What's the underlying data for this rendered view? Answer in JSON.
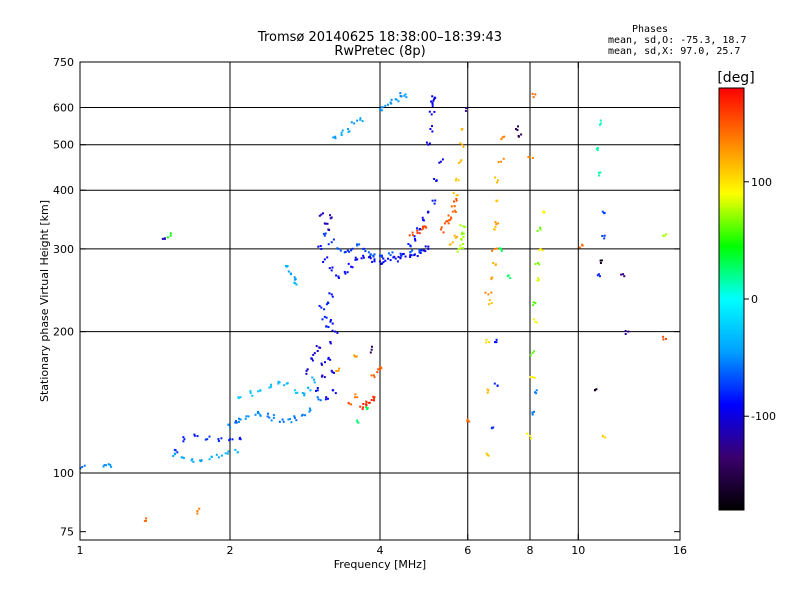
{
  "chart_data": {
    "type": "scatter",
    "title": "Tromsø 20140625 18:38:00–18:39:43",
    "subtitle": "RwPretec (8p)",
    "stats": {
      "heading": "Phases",
      "line1": "mean, sd,O:  -75.3, 18.7",
      "line2": "mean, sd,X:   97.0, 25.7"
    },
    "xlabel": "Frequency [MHz]",
    "ylabel": "Stationary phase Virtual Height [km]",
    "x_scale": "log",
    "y_scale": "log",
    "xlim": [
      1,
      16
    ],
    "ylim": [
      72,
      750
    ],
    "x_ticks": [
      {
        "value": 1,
        "label": "1"
      },
      {
        "value": 2,
        "label": "2"
      },
      {
        "value": 4,
        "label": "4"
      },
      {
        "value": 6,
        "label": "6"
      },
      {
        "value": 8,
        "label": "8"
      },
      {
        "value": 10,
        "label": "10"
      },
      {
        "value": 16,
        "label": "16"
      }
    ],
    "y_ticks": [
      {
        "value": 75,
        "label": "75"
      },
      {
        "value": 100,
        "label": "100"
      },
      {
        "value": 200,
        "label": "200"
      },
      {
        "value": 300,
        "label": "300"
      },
      {
        "value": 400,
        "label": "400"
      },
      {
        "value": 500,
        "label": "500"
      },
      {
        "value": 600,
        "label": "600"
      },
      {
        "value": 750,
        "label": "750"
      }
    ],
    "x_grid": [
      2,
      4,
      6,
      8,
      10
    ],
    "y_grid": [
      100,
      200,
      300,
      400,
      500,
      600
    ],
    "grid": true,
    "colorbar": {
      "label": "[deg]",
      "range": [
        -180,
        180
      ],
      "ticks": [
        {
          "value": 100,
          "label": "100"
        },
        {
          "value": 0,
          "label": "0"
        },
        {
          "value": -100,
          "label": "-100"
        }
      ],
      "stops": [
        "#000000",
        "#3a006e",
        "#0000ff",
        "#00a0ff",
        "#00ffff",
        "#00ff00",
        "#ffff00",
        "#ff8000",
        "#ff0000"
      ]
    },
    "series": [
      {
        "x": [
          1.01,
          1.12,
          1.15
        ],
        "y": [
          103,
          104,
          104
        ],
        "phase": -50
      },
      {
        "x": [
          1.35
        ],
        "y": [
          79
        ],
        "phase": 140
      },
      {
        "x": [
          1.72
        ],
        "y": [
          83
        ],
        "phase": 130
      },
      {
        "x": [
          1.55,
          1.62,
          1.7,
          1.8,
          1.9,
          2.0,
          2.1
        ],
        "y": [
          112,
          118,
          120,
          118,
          117,
          118,
          118
        ],
        "phase": -80
      },
      {
        "x": [
          1.55,
          1.6,
          1.68,
          1.75,
          1.82,
          1.9,
          1.98,
          2.05
        ],
        "y": [
          110,
          108,
          107,
          106,
          107,
          108,
          110,
          112
        ],
        "phase": -40
      },
      {
        "x": [
          2.0,
          2.05,
          2.1,
          2.18,
          2.25,
          2.3,
          2.38,
          2.45,
          2.55,
          2.62,
          2.7,
          2.8,
          2.9,
          3.0
        ],
        "y": [
          125,
          128,
          130,
          132,
          133,
          133,
          132,
          131,
          130,
          130,
          131,
          133,
          136,
          145
        ],
        "phase": -55
      },
      {
        "x": [
          2.1,
          2.2,
          2.3,
          2.4,
          2.5,
          2.6,
          2.7,
          2.8,
          2.9,
          2.95
        ],
        "y": [
          145,
          148,
          150,
          152,
          155,
          155,
          150,
          148,
          150,
          158
        ],
        "phase": -30
      },
      {
        "x": [
          2.85,
          2.92,
          2.96,
          3.0,
          3.02,
          3.06,
          3.1,
          3.12,
          3.15,
          3.18,
          3.2,
          3.22,
          3.25
        ],
        "y": [
          165,
          175,
          180,
          150,
          185,
          170,
          160,
          145,
          175,
          190,
          165,
          150,
          200
        ],
        "phase": -100
      },
      {
        "x": [
          3.05,
          3.1,
          3.12,
          3.15,
          3.18,
          3.2
        ],
        "y": [
          225,
          215,
          205,
          230,
          210,
          240
        ],
        "phase": -85
      },
      {
        "x": [
          3.05,
          3.1,
          3.2,
          3.3,
          3.4,
          3.5,
          3.6,
          3.7,
          3.8,
          3.9,
          4.0,
          4.1,
          4.2,
          4.3,
          4.4,
          4.5,
          4.6,
          4.7,
          4.8,
          4.9,
          5.0
        ],
        "y": [
          300,
          285,
          270,
          262,
          268,
          275,
          285,
          290,
          288,
          285,
          282,
          283,
          284,
          286,
          287,
          289,
          291,
          292,
          295,
          298,
          300
        ],
        "phase": -95
      },
      {
        "x": [
          3.1,
          3.2,
          3.3,
          3.4,
          3.5,
          3.6,
          3.7,
          3.8,
          3.9,
          4.0,
          4.2,
          4.4,
          4.6,
          4.8
        ],
        "y": [
          320,
          310,
          300,
          295,
          298,
          305,
          300,
          295,
          292,
          290,
          291,
          293,
          295,
          298
        ],
        "phase": -70
      },
      {
        "x": [
          3.05,
          3.1,
          3.15,
          3.2
        ],
        "y": [
          355,
          340,
          330,
          350
        ],
        "phase": -110
      },
      {
        "x": [
          2.6,
          2.65,
          2.7,
          2.72
        ],
        "y": [
          275,
          265,
          258,
          252
        ],
        "phase": -40
      },
      {
        "x": [
          3.25,
          3.35,
          3.45,
          3.55,
          3.65
        ],
        "y": [
          520,
          530,
          540,
          555,
          565
        ],
        "phase": -45
      },
      {
        "x": [
          4.0,
          4.1,
          4.2,
          4.3,
          4.4,
          4.5
        ],
        "y": [
          595,
          605,
          615,
          625,
          635,
          640
        ],
        "phase": -50
      },
      {
        "x": [
          4.6,
          4.7,
          4.8,
          4.9,
          5.0,
          5.1,
          5.2,
          5.3
        ],
        "y": [
          305,
          315,
          330,
          345,
          360,
          380,
          420,
          460
        ],
        "phase": -90
      },
      {
        "x": [
          5.0,
          5.05,
          5.08,
          5.1,
          5.12,
          5.15
        ],
        "y": [
          500,
          540,
          580,
          610,
          620,
          630
        ],
        "phase": -100
      },
      {
        "x": [
          5.3,
          5.4,
          5.5,
          5.55,
          5.6,
          5.65,
          5.7
        ],
        "y": [
          330,
          340,
          345,
          350,
          360,
          370,
          380
        ],
        "phase": 150
      },
      {
        "x": [
          5.6,
          5.65,
          5.7,
          5.75,
          5.8,
          5.85,
          5.85
        ],
        "y": [
          310,
          320,
          390,
          420,
          460,
          500,
          540
        ],
        "phase": 115
      },
      {
        "x": [
          5.75,
          5.8,
          5.82,
          5.85,
          5.88
        ],
        "y": [
          300,
          305,
          315,
          325,
          335
        ],
        "phase": 70
      },
      {
        "x": [
          4.65,
          4.75,
          4.85,
          4.95
        ],
        "y": [
          325,
          328,
          330,
          333
        ],
        "phase": 160
      },
      {
        "x": [
          3.7,
          3.75,
          3.8,
          3.85,
          3.9
        ],
        "y": [
          138,
          140,
          141,
          143,
          145
        ],
        "phase": 165
      },
      {
        "x": [
          3.9,
          3.95,
          4.0
        ],
        "y": [
          160,
          164,
          168
        ],
        "phase": 150
      },
      {
        "x": [
          3.5,
          3.6
        ],
        "y": [
          140,
          145
        ],
        "phase": 140
      },
      {
        "x": [
          3.3,
          3.55
        ],
        "y": [
          165,
          178
        ],
        "phase": 120
      },
      {
        "x": [
          3.62,
          3.75
        ],
        "y": [
          128,
          138
        ],
        "phase": 30
      },
      {
        "x": [
          3.85
        ],
        "y": [
          183
        ],
        "phase": -150
      },
      {
        "x": [
          6.0
        ],
        "y": [
          130
        ],
        "phase": 140
      },
      {
        "x": [
          5.95
        ],
        "y": [
          590
        ],
        "phase": -120
      },
      {
        "x": [
          1.48
        ],
        "y": [
          315
        ],
        "phase": -110
      },
      {
        "x": [
          1.52
        ],
        "y": [
          320
        ],
        "phase": 50
      },
      {
        "x": [
          6.55,
          6.6,
          6.62,
          6.7,
          6.75,
          6.8,
          6.85,
          6.9
        ],
        "y": [
          110,
          150,
          190,
          230,
          280,
          330,
          380,
          420
        ],
        "phase": 110
      },
      {
        "x": [
          6.6,
          6.7,
          6.8,
          6.9,
          7.0,
          7.1
        ],
        "y": [
          240,
          260,
          300,
          340,
          460,
          520
        ],
        "phase": 130
      },
      {
        "x": [
          6.75,
          6.8,
          6.85
        ],
        "y": [
          125,
          155,
          190
        ],
        "phase": -80
      },
      {
        "x": [
          7.0,
          7.3
        ],
        "y": [
          300,
          260
        ],
        "phase": 30
      },
      {
        "x": [
          7.5,
          7.6
        ],
        "y": [
          540,
          520
        ],
        "phase": -150
      },
      {
        "x": [
          8.0,
          8.1,
          8.2,
          8.3,
          8.4,
          8.5
        ],
        "y": [
          120,
          160,
          210,
          260,
          300,
          360
        ],
        "phase": 90
      },
      {
        "x": [
          8.1,
          8.2,
          8.3,
          8.4
        ],
        "y": [
          180,
          230,
          280,
          330
        ],
        "phase": 60
      },
      {
        "x": [
          8.0,
          8.2
        ],
        "y": [
          470,
          640
        ],
        "phase": 140
      },
      {
        "x": [
          8.15,
          8.25
        ],
        "y": [
          135,
          150
        ],
        "phase": -50
      },
      {
        "x": [
          10.2
        ],
        "y": [
          305
        ],
        "phase": 150
      },
      {
        "x": [
          10.9,
          11.0,
          11.1
        ],
        "y": [
          490,
          430,
          555
        ],
        "phase": 10
      },
      {
        "x": [
          11.2
        ],
        "y": [
          120
        ],
        "phase": 100
      },
      {
        "x": [
          11.0,
          11.2,
          11.3
        ],
        "y": [
          265,
          360,
          320
        ],
        "phase": -80
      },
      {
        "x": [
          10.8,
          11.1
        ],
        "y": [
          150,
          280
        ],
        "phase": -160
      },
      {
        "x": [
          12.3,
          12.6
        ],
        "y": [
          265,
          200
        ],
        "phase": -120
      },
      {
        "x": [
          14.8
        ],
        "y": [
          195
        ],
        "phase": 150
      },
      {
        "x": [
          14.8
        ],
        "y": [
          320
        ],
        "phase": 80
      }
    ]
  }
}
